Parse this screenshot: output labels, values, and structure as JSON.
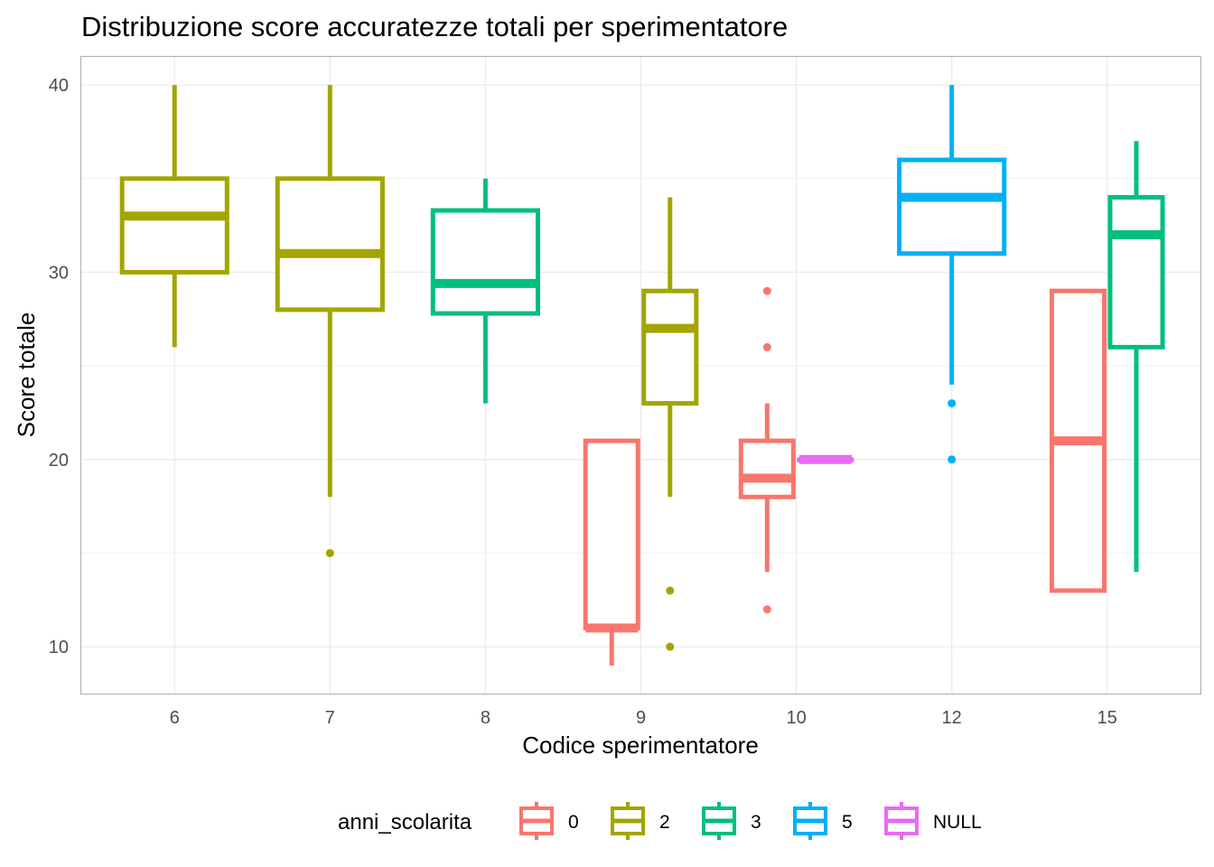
{
  "chart_data": {
    "type": "boxplot",
    "title": "Distribuzione score accuratezze totali per sperimentatore",
    "xlabel": "Codice sperimentatore",
    "ylabel": "Score totale",
    "categories": [
      "6",
      "7",
      "8",
      "9",
      "10",
      "12",
      "15"
    ],
    "y_ticks": [
      10,
      20,
      30,
      40
    ],
    "ylim": [
      7.5,
      41.5
    ],
    "grid": true,
    "legend": {
      "title": "anni_scolarita",
      "position": "bottom",
      "entries": [
        {
          "label": "0",
          "color": "#F8766D"
        },
        {
          "label": "2",
          "color": "#A3A500"
        },
        {
          "label": "3",
          "color": "#00BF7D"
        },
        {
          "label": "5",
          "color": "#00B0F6"
        },
        {
          "label": "NULL",
          "color": "#E76BF3"
        }
      ]
    },
    "boxes": [
      {
        "category": "6",
        "group": "2",
        "min": 26,
        "q1": 30,
        "median": 33,
        "q3": 35,
        "max": 40,
        "outliers": []
      },
      {
        "category": "7",
        "group": "2",
        "min": 18,
        "q1": 28,
        "median": 31,
        "q3": 35,
        "max": 40,
        "outliers": [
          15
        ]
      },
      {
        "category": "8",
        "group": "3",
        "min": 23,
        "q1": 27.8,
        "median": 29.4,
        "q3": 33.3,
        "max": 35,
        "outliers": []
      },
      {
        "category": "9",
        "group": "0",
        "min": 9,
        "q1": 11,
        "median": 11,
        "q3": 21,
        "max": 21,
        "outliers": []
      },
      {
        "category": "9",
        "group": "2",
        "min": 18,
        "q1": 23,
        "median": 27,
        "q3": 29,
        "max": 34,
        "outliers": [
          13,
          10
        ]
      },
      {
        "category": "10",
        "group": "0",
        "min": 14,
        "q1": 18,
        "median": 19,
        "q3": 21,
        "max": 23,
        "outliers": [
          29,
          26,
          12
        ]
      },
      {
        "category": "10",
        "group": "NULL",
        "min": 20,
        "q1": 20,
        "median": 20,
        "q3": 20,
        "max": 20,
        "outliers": []
      },
      {
        "category": "12",
        "group": "5",
        "min": 24,
        "q1": 31,
        "median": 34,
        "q3": 36,
        "max": 40,
        "outliers": [
          23,
          20
        ]
      },
      {
        "category": "15",
        "group": "0",
        "min": 13,
        "q1": 13,
        "median": 21,
        "q3": 29,
        "max": 29,
        "outliers": []
      },
      {
        "category": "15",
        "group": "3",
        "min": 14,
        "q1": 26,
        "median": 32,
        "q3": 34,
        "max": 37,
        "outliers": []
      }
    ]
  }
}
